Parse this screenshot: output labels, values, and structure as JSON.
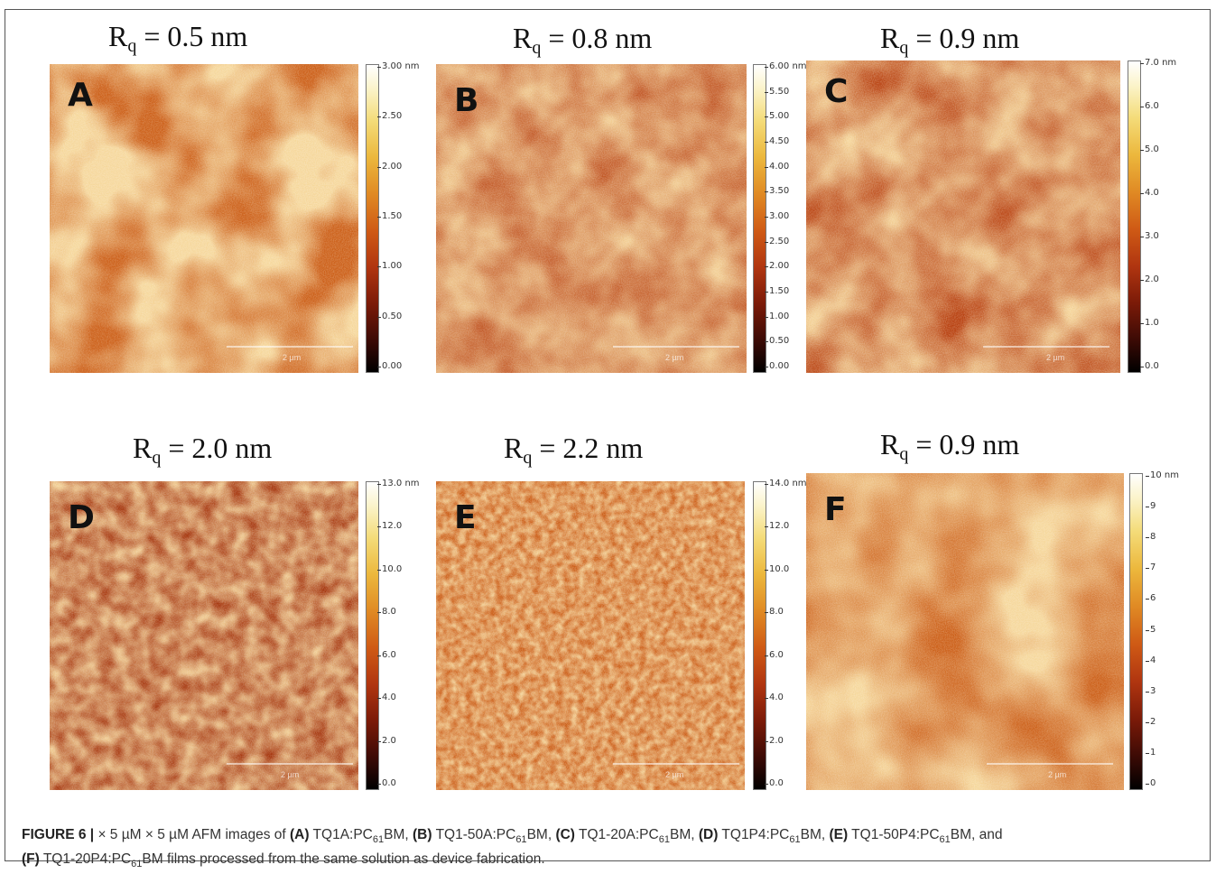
{
  "panels": [
    {
      "letter": "A",
      "rq_value": "= 0.5 nm",
      "ticks": [
        "3.00 nm",
        "2.50",
        "2.00",
        "1.50",
        "1.00",
        "0.50",
        "0.00"
      ],
      "scalebar_label": "2 µm"
    },
    {
      "letter": "B",
      "rq_value": "= 0.8 nm",
      "ticks": [
        "6.00 nm",
        "5.50",
        "5.00",
        "4.50",
        "4.00",
        "3.50",
        "3.00",
        "2.50",
        "2.00",
        "1.50",
        "1.00",
        "0.50",
        "0.00"
      ],
      "scalebar_label": "2 µm"
    },
    {
      "letter": "C",
      "rq_value": "= 0.9 nm",
      "ticks": [
        "7.0 nm",
        "6.0",
        "5.0",
        "4.0",
        "3.0",
        "2.0",
        "1.0",
        "0.0"
      ],
      "scalebar_label": "2 µm"
    },
    {
      "letter": "D",
      "rq_value": "= 2.0 nm",
      "ticks": [
        "13.0 nm",
        "12.0",
        "10.0",
        "8.0",
        "6.0",
        "4.0",
        "2.0",
        "0.0"
      ],
      "scalebar_label": "2 µm"
    },
    {
      "letter": "E",
      "rq_value": "= 2.2 nm",
      "ticks": [
        "14.0 nm",
        "12.0",
        "10.0",
        "8.0",
        "6.0",
        "4.0",
        "2.0",
        "0.0"
      ],
      "scalebar_label": "2 µm"
    },
    {
      "letter": "F",
      "rq_value": "= 0.9 nm",
      "ticks": [
        "10 nm",
        "9",
        "8",
        "7",
        "6",
        "5",
        "4",
        "3",
        "2",
        "1",
        "0"
      ],
      "scalebar_label": "2 µm"
    }
  ],
  "rq_symbol": "R",
  "rq_subscript": "q",
  "caption": {
    "figure_label": "FIGURE 6 |",
    "t1": " × 5 µM × 5 µM AFM images of ",
    "la": "(A)",
    "a1": " TQ1A:PC",
    "a2": "BM, ",
    "lb": "(B)",
    "b1": " TQ1-50A:PC",
    "b2": "BM, ",
    "lc": "(C)",
    "c1": " TQ1-20A:PC",
    "c2": "BM, ",
    "ld": "(D)",
    "d1": " TQ1P4:PC",
    "d2": "BM, ",
    "le": "(E)",
    "e1": " TQ1-50P4:PC",
    "e2": "BM, and",
    "lf": "(F)",
    "f1": " TQ1-20P4:PC",
    "f2": "BM films processed from the same solution as device fabrication.",
    "sub61": "61"
  }
}
